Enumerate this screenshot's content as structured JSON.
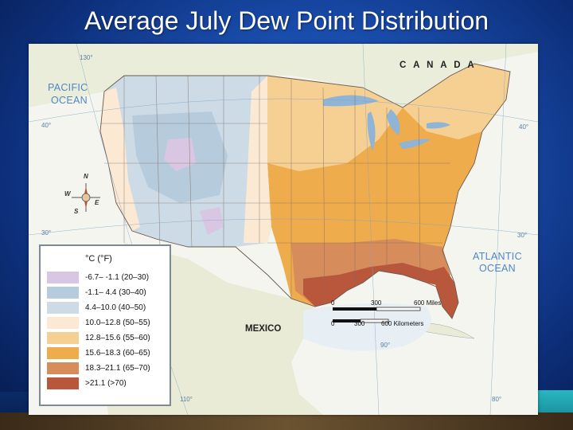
{
  "slide": {
    "title": "Average July Dew Point Distribution"
  },
  "map": {
    "canada_label": "C A N A D A",
    "mexico_label": "MEXICO",
    "pacific_ocean": [
      "PACIFIC",
      "OCEAN"
    ],
    "atlantic_ocean": [
      "ATLANTIC",
      "OCEAN"
    ],
    "grid_labels": {
      "lon_130": "130°",
      "lat_40_west": "40°",
      "lat_40_east": "40°",
      "lat_30_west": "30°",
      "lat_30_east": "30°",
      "lon_90": "90°",
      "lon_110": "110°",
      "lon_80": "80°"
    },
    "compass": {
      "n": "N",
      "s": "S",
      "e": "E",
      "w": "W"
    },
    "scale": {
      "miles_ticks": [
        "0",
        "300",
        "600 Miles"
      ],
      "km_ticks": [
        "0",
        "300",
        "600 Kilometers"
      ]
    }
  },
  "legend": {
    "title": "°C (°F)",
    "items": [
      {
        "label": "-6.7– -1.1 (20–30)",
        "color": "#d9c6e2"
      },
      {
        "label": "-1.1– 4.4 (30–40)",
        "color": "#b6cbdc"
      },
      {
        "label": "4.4–10.0 (40–50)",
        "color": "#cddbe6"
      },
      {
        "label": "10.0–12.8 (50–55)",
        "color": "#fbe9d4"
      },
      {
        "label": "12.8–15.6 (55–60)",
        "color": "#f6cf92"
      },
      {
        "label": "15.6–18.3 (60–65)",
        "color": "#eeac4c"
      },
      {
        "label": "18.3–21.1 (65–70)",
        "color": "#d78c5c"
      },
      {
        "label": ">21.1 (>70)",
        "color": "#b9573c"
      }
    ]
  }
}
